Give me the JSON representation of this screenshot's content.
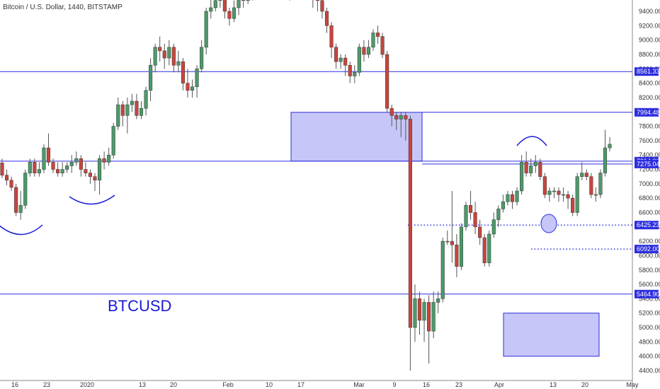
{
  "chart_data": {
    "type": "candlestick",
    "title": "Bitcoin / U.S. Dollar, 1440, BITSTAMP",
    "symbol_label": "BTCUSD",
    "ylim": [
      4300,
      9700
    ],
    "y_ticks": [
      4400,
      4600,
      4800,
      5000,
      5200,
      5400,
      5600,
      5800,
      6000,
      6200,
      6400,
      6600,
      6800,
      7000,
      7200,
      7400,
      7600,
      7800,
      8000,
      8200,
      8400,
      8600,
      8800,
      9000,
      9200,
      9400
    ],
    "x_ticks": [
      "16",
      "23",
      "2020",
      "13",
      "20",
      "Feb",
      "10",
      "17",
      "Mar",
      "9",
      "16",
      "23",
      "Apr",
      "13",
      "20",
      "May"
    ],
    "horizontal_levels": [
      8561.33,
      7994.48,
      7314.8,
      7275.04,
      6425.23,
      6092.0,
      5464.9
    ],
    "level_labels": [
      "8561.33",
      "7994.48",
      "7314.80",
      "7275.04",
      "6425.23",
      "6092.00",
      "5464.90"
    ],
    "candles": [
      [
        7290,
        7120,
        7350,
        7080
      ],
      [
        7120,
        7050,
        7200,
        6980
      ],
      [
        7050,
        6950,
        7100,
        6900
      ],
      [
        6950,
        6600,
        7000,
        6550
      ],
      [
        6600,
        6700,
        6900,
        6500
      ],
      [
        6700,
        7150,
        7200,
        6650
      ],
      [
        7150,
        7300,
        7350,
        7100
      ],
      [
        7300,
        7150,
        7350,
        7100
      ],
      [
        7150,
        7200,
        7300,
        7100
      ],
      [
        7200,
        7500,
        7550,
        7150
      ],
      [
        7500,
        7300,
        7700,
        7250
      ],
      [
        7300,
        7200,
        7350,
        7150
      ],
      [
        7200,
        7150,
        7300,
        7100
      ],
      [
        7150,
        7200,
        7300,
        7100
      ],
      [
        7200,
        7250,
        7300,
        7150
      ],
      [
        7250,
        7300,
        7400,
        7150
      ],
      [
        7300,
        7350,
        7450,
        7250
      ],
      [
        7350,
        7200,
        7400,
        7100
      ],
      [
        7200,
        7150,
        7300,
        7100
      ],
      [
        7150,
        7100,
        7200,
        7000
      ],
      [
        7100,
        7050,
        7150,
        6900
      ],
      [
        7050,
        7350,
        7400,
        6850
      ],
      [
        7350,
        7300,
        7450,
        7200
      ],
      [
        7300,
        7400,
        7500,
        7250
      ],
      [
        7400,
        7800,
        7850,
        7350
      ],
      [
        7800,
        8100,
        8200,
        7750
      ],
      [
        8100,
        7950,
        8150,
        7800
      ],
      [
        7950,
        8100,
        8200,
        7700
      ],
      [
        8100,
        8150,
        8250,
        8000
      ],
      [
        8150,
        7950,
        8250,
        7900
      ],
      [
        7950,
        8050,
        8150,
        7900
      ],
      [
        8050,
        8300,
        8350,
        7950
      ],
      [
        8300,
        8650,
        8750,
        8150
      ],
      [
        8650,
        8900,
        8950,
        8550
      ],
      [
        8900,
        8850,
        9050,
        8700
      ],
      [
        8850,
        8750,
        8950,
        8600
      ],
      [
        8750,
        8900,
        9000,
        8650
      ],
      [
        8900,
        8650,
        8950,
        8550
      ],
      [
        8650,
        8700,
        8850,
        8550
      ],
      [
        8700,
        8400,
        8750,
        8300
      ],
      [
        8400,
        8300,
        8600,
        8200
      ],
      [
        8300,
        8350,
        8450,
        8200
      ],
      [
        8350,
        8600,
        8650,
        8200
      ],
      [
        8600,
        8900,
        9000,
        8550
      ],
      [
        8900,
        9400,
        9450,
        8800
      ],
      [
        9400,
        9450,
        9700,
        9300
      ],
      [
        9450,
        9550,
        9600,
        9400
      ],
      [
        9550,
        9600,
        9750,
        9450
      ],
      [
        9600,
        9400,
        9650,
        9300
      ],
      [
        9400,
        9300,
        9450,
        9200
      ],
      [
        9300,
        9450,
        9550,
        9250
      ],
      [
        9450,
        9650,
        9700,
        9350
      ],
      [
        9650,
        9550,
        9700,
        9450
      ],
      [
        9550,
        9650,
        9700,
        9500
      ],
      [
        9650,
        9700,
        9800,
        9550
      ],
      [
        9700,
        9800,
        9850,
        9600
      ],
      [
        9800,
        9750,
        9900,
        9650
      ],
      [
        9750,
        9800,
        9850,
        9600
      ],
      [
        9800,
        9850,
        9950,
        9700
      ],
      [
        9850,
        9900,
        9950,
        9750
      ],
      [
        9900,
        9850,
        9950,
        9700
      ],
      [
        9850,
        9750,
        9900,
        9600
      ],
      [
        9750,
        9700,
        9850,
        9550
      ],
      [
        9700,
        9800,
        9850,
        9600
      ],
      [
        9800,
        9900,
        9950,
        9700
      ],
      [
        9900,
        9850,
        9950,
        9650
      ],
      [
        9850,
        9700,
        9900,
        9600
      ],
      [
        9700,
        9600,
        9750,
        9450
      ],
      [
        9600,
        9550,
        9650,
        9400
      ],
      [
        9550,
        9400,
        9600,
        9300
      ],
      [
        9400,
        9200,
        9450,
        9100
      ],
      [
        9200,
        8900,
        9250,
        8750
      ],
      [
        8900,
        8700,
        8950,
        8600
      ],
      [
        8700,
        8750,
        8800,
        8600
      ],
      [
        8750,
        8650,
        8800,
        8500
      ],
      [
        8650,
        8500,
        8700,
        8400
      ],
      [
        8500,
        8550,
        8650,
        8400
      ],
      [
        8550,
        8900,
        8950,
        8500
      ],
      [
        8900,
        8800,
        9000,
        8700
      ],
      [
        8800,
        8900,
        9000,
        8750
      ],
      [
        8900,
        9100,
        9150,
        8850
      ],
      [
        9100,
        9050,
        9200,
        8950
      ],
      [
        9050,
        8800,
        9100,
        8750
      ],
      [
        8800,
        8050,
        8850,
        8000
      ],
      [
        8050,
        7950,
        8100,
        7800
      ],
      [
        7950,
        7900,
        8000,
        7750
      ],
      [
        7900,
        7950,
        8000,
        7650
      ],
      [
        7950,
        7900,
        8000,
        7600
      ],
      [
        7900,
        5000,
        7950,
        4400
      ],
      [
        5000,
        5400,
        5600,
        4800
      ],
      [
        5400,
        5100,
        5500,
        4900
      ],
      [
        5100,
        5350,
        5400,
        4800
      ],
      [
        5350,
        4950,
        5450,
        4500
      ],
      [
        4950,
        5350,
        5500,
        4850
      ],
      [
        5350,
        5400,
        5500,
        5200
      ],
      [
        5400,
        6200,
        6250,
        5350
      ],
      [
        6200,
        6200,
        6350,
        6150
      ],
      [
        6200,
        6150,
        6900,
        5900
      ],
      [
        6150,
        5850,
        6300,
        5700
      ],
      [
        5850,
        6400,
        6450,
        5800
      ],
      [
        6400,
        6700,
        6750,
        6350
      ],
      [
        6700,
        6600,
        6900,
        6500
      ],
      [
        6600,
        6400,
        6750,
        6300
      ],
      [
        6400,
        6250,
        6500,
        6150
      ],
      [
        6250,
        5900,
        6300,
        5850
      ],
      [
        5900,
        6300,
        6350,
        5850
      ],
      [
        6300,
        6500,
        6600,
        6250
      ],
      [
        6500,
        6650,
        6700,
        6400
      ],
      [
        6650,
        6750,
        6850,
        6600
      ],
      [
        6750,
        6850,
        6900,
        6700
      ],
      [
        6850,
        6750,
        6900,
        6650
      ],
      [
        6750,
        6900,
        6950,
        6700
      ],
      [
        6900,
        7300,
        7400,
        6850
      ],
      [
        7300,
        7150,
        7450,
        7100
      ],
      [
        7150,
        7250,
        7350,
        7100
      ],
      [
        7250,
        7300,
        7400,
        7150
      ],
      [
        7300,
        7100,
        7350,
        7050
      ],
      [
        7100,
        6850,
        7150,
        6800
      ],
      [
        6850,
        6900,
        6950,
        6750
      ],
      [
        6900,
        6900,
        6950,
        6800
      ],
      [
        6900,
        6850,
        6950,
        6750
      ],
      [
        6850,
        6850,
        6950,
        6750
      ],
      [
        6850,
        6800,
        6900,
        6650
      ],
      [
        6800,
        6600,
        6850,
        6550
      ],
      [
        6600,
        7100,
        7150,
        6550
      ],
      [
        7100,
        7150,
        7300,
        7050
      ],
      [
        7150,
        7100,
        7200,
        7050
      ],
      [
        7100,
        6850,
        7150,
        6800
      ],
      [
        6850,
        6850,
        6950,
        6750
      ],
      [
        6850,
        7150,
        7200,
        6800
      ],
      [
        7150,
        7500,
        7750,
        7100
      ],
      [
        7500,
        7550,
        7650,
        7450
      ],
      [
        7550,
        7550,
        7700,
        7450
      ],
      [
        7550,
        7580,
        7700,
        7500
      ]
    ],
    "colors": {
      "up": "#4c9a6a",
      "down": "#c8453d",
      "levels": "#2d2de0",
      "zone_fill": "#c6c6f8",
      "text_blue": "#1a1ad6"
    }
  }
}
